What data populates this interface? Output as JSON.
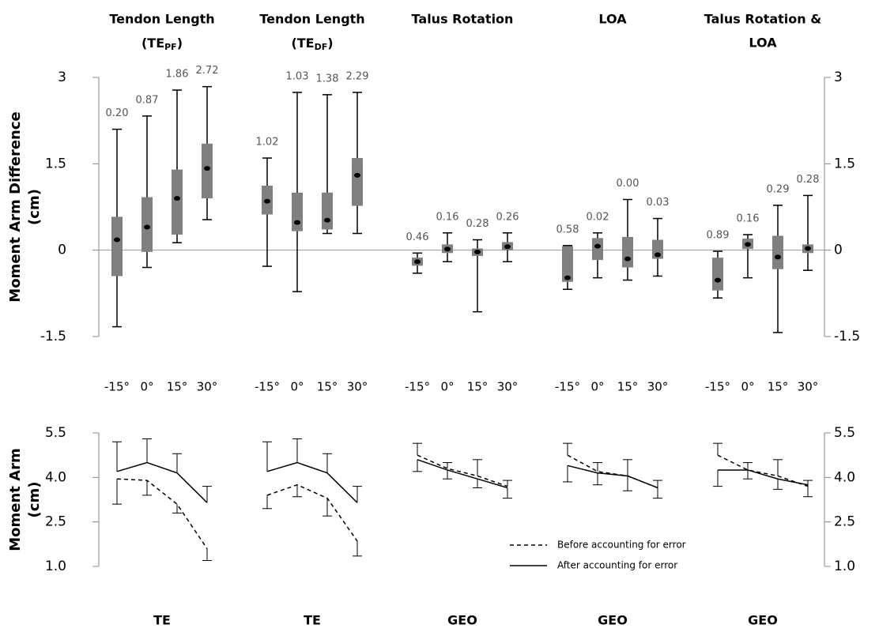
{
  "chart_data": [
    {
      "type": "box",
      "ylabel": [
        "Moment Arm Difference",
        "(cm)"
      ],
      "ylim": [
        -1.5,
        3
      ],
      "yticks": [
        3,
        1.5,
        0,
        -1.5
      ],
      "box_color": "#808080",
      "categories": [
        "-15°",
        "0°",
        "15°",
        "30°"
      ],
      "groups": [
        {
          "title": [
            "Tendon Length"
          ],
          "title2": [
            "(TE",
            "PF",
            ")"
          ],
          "boxes": [
            {
              "min": -1.33,
              "q1": -0.45,
              "median": 0.18,
              "q3": 0.58,
              "max": 2.1
            },
            {
              "min": -0.3,
              "q1": -0.03,
              "median": 0.4,
              "q3": 0.92,
              "max": 2.33
            },
            {
              "min": 0.13,
              "q1": 0.27,
              "median": 0.9,
              "q3": 1.4,
              "max": 2.78
            },
            {
              "min": 0.53,
              "q1": 0.9,
              "median": 1.42,
              "q3": 1.85,
              "max": 2.84
            }
          ],
          "labels": [
            "0.20",
            "0.87",
            "1.86",
            "2.72"
          ]
        },
        {
          "title": [
            "Tendon Length"
          ],
          "title2": [
            "(TE",
            "DF",
            ")"
          ],
          "boxes": [
            {
              "min": -0.28,
              "q1": 0.62,
              "median": 0.85,
              "q3": 1.12,
              "max": 1.6
            },
            {
              "min": -0.72,
              "q1": 0.33,
              "median": 0.48,
              "q3": 1.0,
              "max": 2.74
            },
            {
              "min": 0.29,
              "q1": 0.36,
              "median": 0.52,
              "q3": 1.0,
              "max": 2.7
            },
            {
              "min": 0.29,
              "q1": 0.77,
              "median": 1.3,
              "q3": 1.6,
              "max": 2.74
            }
          ],
          "labels": [
            "1.02",
            "1.03",
            "1.38",
            "2.29"
          ]
        },
        {
          "title": [
            "Talus Rotation"
          ],
          "boxes": [
            {
              "min": -0.4,
              "q1": -0.27,
              "median": -0.2,
              "q3": -0.13,
              "max": -0.05
            },
            {
              "min": -0.2,
              "q1": -0.05,
              "median": 0.02,
              "q3": 0.1,
              "max": 0.3
            },
            {
              "min": -1.07,
              "q1": -0.1,
              "median": -0.03,
              "q3": 0.03,
              "max": 0.18
            },
            {
              "min": -0.2,
              "q1": 0.0,
              "median": 0.06,
              "q3": 0.14,
              "max": 0.3
            }
          ],
          "labels": [
            "0.46",
            "0.16",
            "0.28",
            "0.26"
          ]
        },
        {
          "title": [
            "LOA"
          ],
          "boxes": [
            {
              "min": -0.68,
              "q1": -0.55,
              "median": -0.48,
              "q3": 0.07,
              "max": 0.08
            },
            {
              "min": -0.48,
              "q1": -0.17,
              "median": 0.07,
              "q3": 0.21,
              "max": 0.3
            },
            {
              "min": -0.52,
              "q1": -0.3,
              "median": -0.15,
              "q3": 0.23,
              "max": 0.88
            },
            {
              "min": -0.45,
              "q1": -0.15,
              "median": -0.08,
              "q3": 0.18,
              "max": 0.55
            }
          ],
          "labels": [
            "0.58",
            "0.02",
            "0.00",
            "0.03"
          ]
        },
        {
          "title": [
            "Talus Rotation &",
            "LOA"
          ],
          "boxes": [
            {
              "min": -0.83,
              "q1": -0.7,
              "median": -0.52,
              "q3": -0.13,
              "max": -0.02
            },
            {
              "min": -0.48,
              "q1": 0.02,
              "median": 0.1,
              "q3": 0.2,
              "max": 0.27
            },
            {
              "min": -1.43,
              "q1": -0.33,
              "median": -0.12,
              "q3": 0.25,
              "max": 0.78
            },
            {
              "min": -0.35,
              "q1": -0.05,
              "median": 0.03,
              "q3": 0.1,
              "max": 0.95
            }
          ],
          "labels": [
            "0.89",
            "0.16",
            "0.29",
            "0.28"
          ]
        }
      ]
    },
    {
      "type": "line",
      "ylabel": [
        "Moment Arm",
        "(cm)"
      ],
      "ylim": [
        1,
        5.5
      ],
      "yticks": [
        5.5,
        {
          "value": 4,
          "label": "4.0"
        },
        2.5,
        {
          "value": 1,
          "label": "1.0"
        }
      ],
      "legend": [
        {
          "name": "Before accounting for error",
          "color": "#000000",
          "dash": "5,4"
        },
        {
          "name": "After accounting for error",
          "color": "#000000",
          "dash": "none"
        }
      ],
      "groups": [
        {
          "label": "TE",
          "series": [
            {
              "values": [
                3.95,
                3.9,
                3.1,
                1.6
              ],
              "errors": [
                0.85,
                0.5,
                0.3,
                0.4
              ],
              "error_direction": "down"
            },
            {
              "values": [
                4.2,
                4.5,
                4.15,
                3.15
              ],
              "errors": [
                1.0,
                0.8,
                0.65,
                0.55
              ],
              "error_direction": "up"
            }
          ]
        },
        {
          "label": "TE",
          "series": [
            {
              "values": [
                3.4,
                3.75,
                3.3,
                1.85
              ],
              "errors": [
                0.45,
                0.4,
                0.6,
                0.5
              ],
              "error_direction": "down"
            },
            {
              "values": [
                4.2,
                4.5,
                4.15,
                3.15
              ],
              "errors": [
                1.0,
                0.8,
                0.65,
                0.55
              ],
              "error_direction": "up"
            }
          ]
        },
        {
          "label": "GEO",
          "series": [
            {
              "values": [
                4.75,
                4.3,
                4.05,
                3.7
              ],
              "errors": [
                0.4,
                0.2,
                0.55,
                0.2
              ],
              "error_direction": "up"
            },
            {
              "values": [
                4.6,
                4.25,
                3.95,
                3.65
              ],
              "errors": [
                0.4,
                0.3,
                0.3,
                0.35
              ],
              "error_direction": "down"
            }
          ]
        },
        {
          "label": "GEO",
          "series": [
            {
              "values": [
                4.75,
                4.2,
                4.05,
                3.65
              ],
              "errors": [
                0.4,
                0.3,
                0.55,
                0.25
              ],
              "error_direction": "up"
            },
            {
              "values": [
                4.4,
                4.15,
                4.05,
                3.65
              ],
              "errors": [
                0.55,
                0.4,
                0.5,
                0.35
              ],
              "error_direction": "down"
            }
          ]
        },
        {
          "label": "GEO",
          "series": [
            {
              "values": [
                4.75,
                4.25,
                4.05,
                3.7
              ],
              "errors": [
                0.4,
                0.25,
                0.55,
                0.2
              ],
              "error_direction": "up"
            },
            {
              "values": [
                4.25,
                4.25,
                3.95,
                3.75
              ],
              "errors": [
                0.55,
                0.3,
                0.35,
                0.4
              ],
              "error_direction": "down"
            }
          ]
        }
      ]
    }
  ]
}
